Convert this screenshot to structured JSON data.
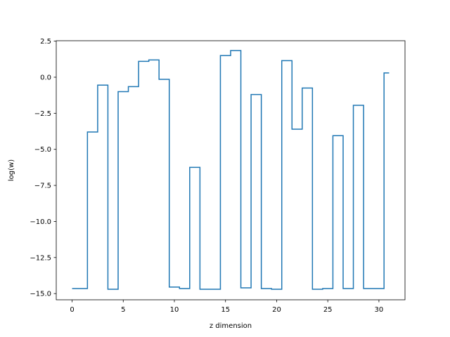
{
  "chart_data": {
    "type": "line",
    "drawstyle": "steps-mid",
    "title": "",
    "xlabel": "z dimension",
    "ylabel": "log(w)",
    "xlim": [
      -1.55,
      32.55
    ],
    "ylim": [
      -15.43,
      2.53
    ],
    "xticks": [
      0,
      5,
      10,
      15,
      20,
      25,
      30
    ],
    "xtick_labels": [
      "0",
      "5",
      "10",
      "15",
      "20",
      "25",
      "30"
    ],
    "yticks": [
      2.5,
      0.0,
      -2.5,
      -5.0,
      -7.5,
      -10.0,
      -12.5,
      -15.0
    ],
    "ytick_labels": [
      "2.5",
      "0.0",
      "−2.5",
      "−5.0",
      "−7.5",
      "−10.0",
      "−12.5",
      "−15.0"
    ],
    "grid": false,
    "series": [
      {
        "color": "#1f77b4",
        "x": [
          0,
          1,
          2,
          3,
          4,
          5,
          6,
          7,
          8,
          9,
          10,
          11,
          12,
          13,
          14,
          15,
          16,
          17,
          18,
          19,
          20,
          21,
          22,
          23,
          24,
          25,
          26,
          27,
          28,
          29,
          30,
          31
        ],
        "y": [
          -14.65,
          -14.65,
          -3.8,
          -0.55,
          -14.7,
          -1.0,
          -0.65,
          1.1,
          1.2,
          -0.15,
          -14.55,
          -14.65,
          -6.25,
          -14.7,
          -14.7,
          1.5,
          1.85,
          -14.6,
          -1.2,
          -14.65,
          -14.7,
          1.15,
          -3.6,
          -0.75,
          -14.7,
          -14.65,
          -4.05,
          -14.65,
          -1.95,
          -14.65,
          -14.65,
          0.3
        ]
      }
    ]
  }
}
